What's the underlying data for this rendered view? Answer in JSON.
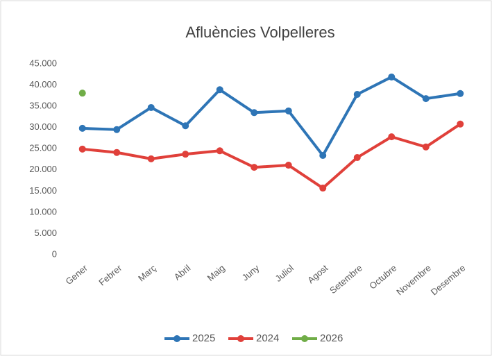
{
  "chart_data": {
    "type": "line",
    "title": "Afluències Volpelleres",
    "categories": [
      "Gener",
      "Febrer",
      "Març",
      "Abril",
      "Maig",
      "Juny",
      "Juliol",
      "Agost",
      "Setembre",
      "Octubre",
      "Novembre",
      "Desembre"
    ],
    "series": [
      {
        "name": "2025",
        "color": "#2e75b6",
        "values": [
          29800,
          29500,
          34700,
          30400,
          38900,
          33500,
          33900,
          23400,
          37800,
          41900,
          36800,
          38000
        ]
      },
      {
        "name": "2024",
        "color": "#e0403a",
        "values": [
          24900,
          24100,
          22600,
          23700,
          24500,
          20600,
          21100,
          15700,
          22900,
          27800,
          25400,
          30800
        ]
      },
      {
        "name": "2026",
        "color": "#70ad47",
        "values": [
          38100,
          null,
          null,
          null,
          null,
          null,
          null,
          null,
          null,
          null,
          null,
          null
        ]
      }
    ],
    "ylim": [
      0,
      45000
    ],
    "yticks": [
      0,
      {
        "value": 5000,
        "label": "5.000"
      },
      {
        "value": 10000,
        "label": "10.000"
      },
      {
        "value": 15000,
        "label": "15.000"
      },
      {
        "value": 20000,
        "label": "20.000"
      },
      {
        "value": 25000,
        "label": "25.000"
      },
      {
        "value": 30000,
        "label": "30.000"
      },
      {
        "value": 35000,
        "label": "35.000"
      },
      {
        "value": 40000,
        "label": "40.000"
      },
      {
        "value": 45000,
        "label": "45.000"
      }
    ],
    "grid": false,
    "legend": "bottom"
  }
}
